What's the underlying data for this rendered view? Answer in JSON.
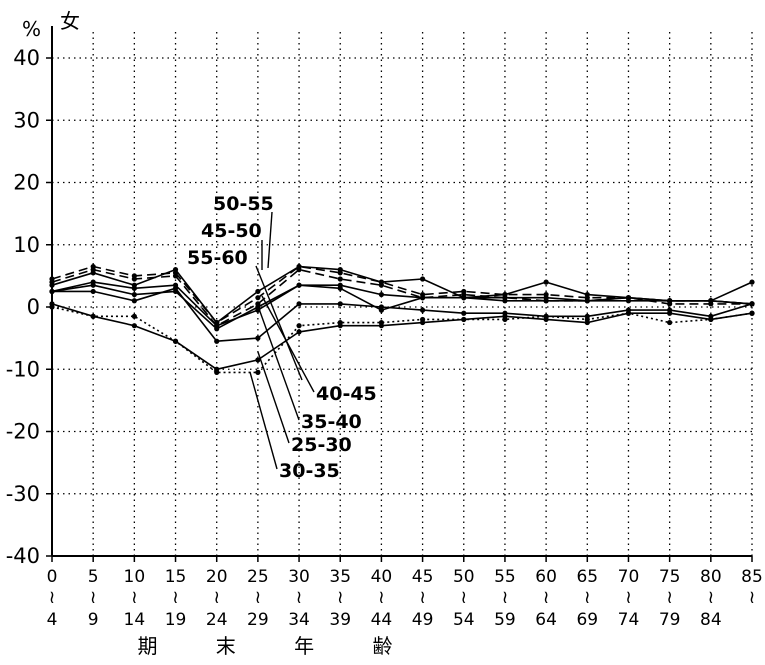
{
  "chart_data": {
    "type": "line",
    "title": "女",
    "ylabel": "%",
    "xlabel": "期 末 年 齢",
    "ylim": [
      -40,
      40
    ],
    "yticks": [
      "40",
      "30",
      "20",
      "10",
      "0",
      "-10",
      "-20",
      "-30",
      "-40"
    ],
    "grid": true,
    "x_tick_labels": [
      {
        "top": "0",
        "sep": "≀",
        "bottom": "4"
      },
      {
        "top": "5",
        "sep": "≀",
        "bottom": "9"
      },
      {
        "top": "10",
        "sep": "≀",
        "bottom": "14"
      },
      {
        "top": "15",
        "sep": "≀",
        "bottom": "19"
      },
      {
        "top": "20",
        "sep": "≀",
        "bottom": "24"
      },
      {
        "top": "25",
        "sep": "≀",
        "bottom": "29"
      },
      {
        "top": "30",
        "sep": "≀",
        "bottom": "34"
      },
      {
        "top": "35",
        "sep": "≀",
        "bottom": "39"
      },
      {
        "top": "40",
        "sep": "≀",
        "bottom": "44"
      },
      {
        "top": "45",
        "sep": "≀",
        "bottom": "49"
      },
      {
        "top": "50",
        "sep": "≀",
        "bottom": "54"
      },
      {
        "top": "55",
        "sep": "≀",
        "bottom": "59"
      },
      {
        "top": "60",
        "sep": "≀",
        "bottom": "64"
      },
      {
        "top": "65",
        "sep": "≀",
        "bottom": "69"
      },
      {
        "top": "70",
        "sep": "≀",
        "bottom": "74"
      },
      {
        "top": "75",
        "sep": "≀",
        "bottom": "79"
      },
      {
        "top": "80",
        "sep": "≀",
        "bottom": "84"
      },
      {
        "top": "85",
        "sep": "≀",
        "bottom": ""
      }
    ],
    "series": [
      {
        "name": "50-55",
        "dash": "dashed",
        "values": [
          4.5,
          6.5,
          5,
          5.5,
          -2.5,
          1.5,
          6.5,
          5.5,
          4,
          2,
          2.5,
          2,
          2,
          1.5,
          1.5,
          1,
          1,
          0.5
        ]
      },
      {
        "name": "45-50",
        "dash": "dashed",
        "values": [
          4,
          6,
          4.5,
          5,
          -3,
          0.5,
          6,
          4.5,
          3.5,
          1.5,
          2,
          1.5,
          1,
          1,
          1.5,
          0.5,
          0.5,
          0.5
        ]
      },
      {
        "name": "55-60",
        "dash": "solid",
        "values": [
          3.5,
          5.5,
          3.5,
          6,
          -2.5,
          2.5,
          6.5,
          6,
          4,
          4.5,
          1.5,
          2,
          4,
          2,
          1.5,
          1,
          1,
          4
        ]
      },
      {
        "name": "40-45",
        "dash": "solid",
        "values": [
          2.5,
          4,
          3,
          3.5,
          -3,
          -0.5,
          3.5,
          3.5,
          2,
          1.5,
          1.5,
          1,
          1,
          1,
          1,
          1,
          1,
          0.5
        ]
      },
      {
        "name": "35-40",
        "dash": "solid",
        "values": [
          2.5,
          3.5,
          2,
          2.5,
          -3.5,
          0,
          3.5,
          3,
          -0.5,
          1.5,
          1.5,
          1.5,
          1.5,
          1,
          1.5,
          1,
          1,
          0.5
        ]
      },
      {
        "name": "25-30",
        "dash": "solid",
        "values": [
          2.5,
          2.5,
          1,
          3,
          -5.5,
          -5,
          0.5,
          0.5,
          0,
          -0.5,
          -1,
          -1,
          -1.5,
          -1.5,
          -0.5,
          -0.5,
          -1.5,
          0.5
        ]
      },
      {
        "name": "30-35",
        "dash": "dotted",
        "values": [
          0,
          -1.5,
          -1.5,
          -5.5,
          -10.5,
          -10.5,
          -3,
          -2.5,
          -2.5,
          -2,
          -2,
          -2,
          -1.5,
          -2,
          -1,
          -2.5,
          -2,
          -1
        ]
      },
      {
        "name": "",
        "dash": "solid",
        "values": [
          0.5,
          -1.5,
          -3,
          -5.5,
          -10,
          -8.5,
          -4,
          -3,
          -3,
          -2.5,
          -2,
          -1.5,
          -2,
          -2.5,
          -1,
          -1,
          -2,
          -1
        ]
      }
    ],
    "annotations": [
      {
        "text": "50-55"
      },
      {
        "text": "45-50"
      },
      {
        "text": "55-60"
      },
      {
        "text": "40-45"
      },
      {
        "text": "35-40"
      },
      {
        "text": "25-30"
      },
      {
        "text": "30-35"
      }
    ]
  }
}
